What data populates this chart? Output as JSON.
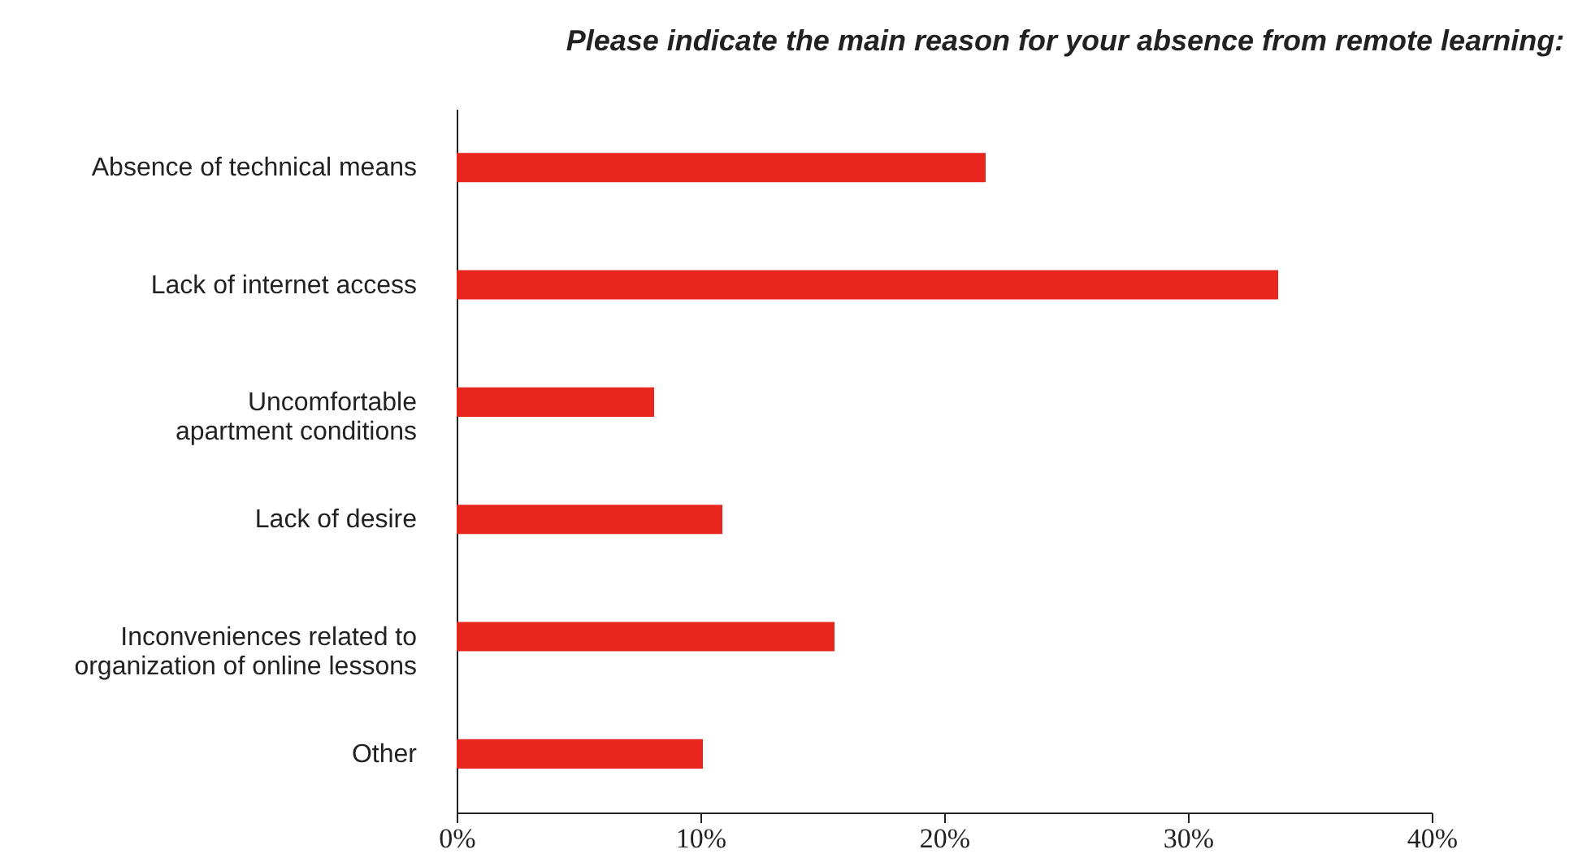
{
  "chart_data": {
    "type": "bar",
    "orientation": "horizontal",
    "title": "Please indicate the main reason for your absence from remote learning:",
    "categories": [
      "Absence of technical means",
      "Lack of internet access",
      "Uncomfortable\napartment conditions",
      "Lack of desire",
      "Inconveniences related to\norganization of online lessons",
      "Other"
    ],
    "values": [
      21.7,
      33.7,
      8.1,
      10.9,
      15.5,
      10.1
    ],
    "color": "#e8261e",
    "xlim": [
      0,
      40
    ],
    "xticks": [
      {
        "value": 0,
        "label": "0%"
      },
      {
        "value": 10,
        "label": "10%"
      },
      {
        "value": 20,
        "label": "20%"
      },
      {
        "value": 30,
        "label": "30%"
      },
      {
        "value": 40,
        "label": "40%"
      }
    ],
    "grid": false
  }
}
